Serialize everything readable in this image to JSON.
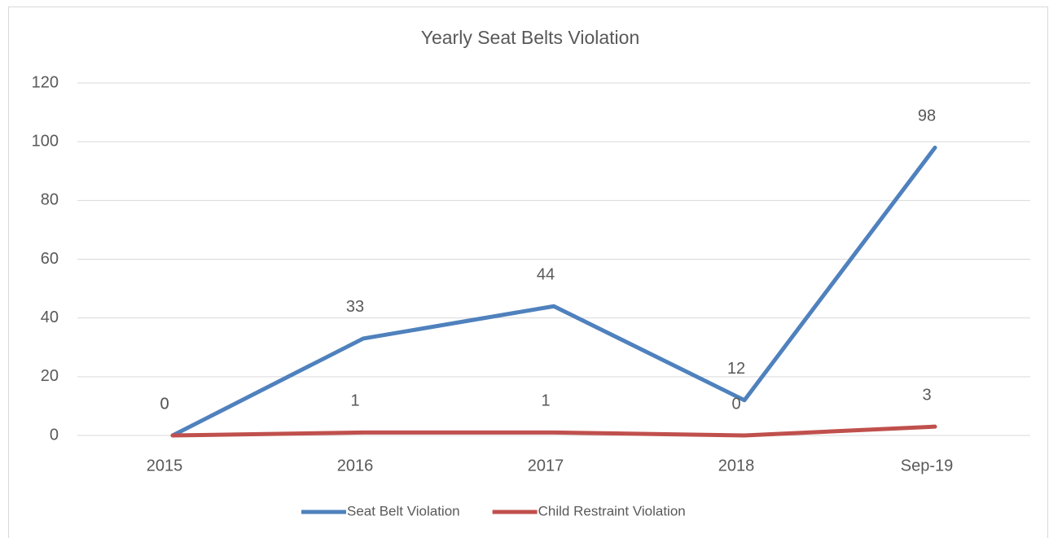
{
  "chart_data": {
    "type": "line",
    "title": "Yearly Seat Belts Violation",
    "categories": [
      "2015",
      "2016",
      "2017",
      "2018",
      "Sep-19"
    ],
    "series": [
      {
        "name": "Seat Belt Violation",
        "color": "#4f81bd",
        "values": [
          0,
          33,
          44,
          12,
          98
        ]
      },
      {
        "name": "Child Restraint Violation",
        "color": "#c0504d",
        "values": [
          0,
          1,
          1,
          0,
          3
        ]
      }
    ],
    "ylim": [
      0,
      120
    ],
    "yticks": [
      0,
      20,
      40,
      60,
      80,
      100,
      120
    ],
    "grid": true,
    "legend": "bottom"
  }
}
